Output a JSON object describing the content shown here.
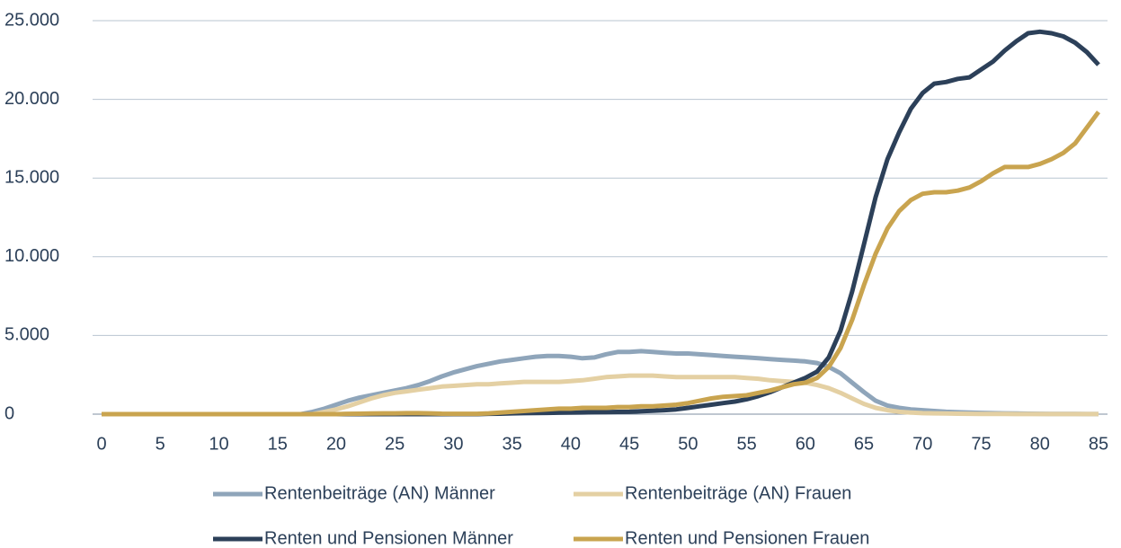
{
  "chart_data": {
    "type": "line",
    "x": [
      0,
      1,
      2,
      3,
      4,
      5,
      6,
      7,
      8,
      9,
      10,
      11,
      12,
      13,
      14,
      15,
      16,
      17,
      18,
      19,
      20,
      21,
      22,
      23,
      24,
      25,
      26,
      27,
      28,
      29,
      30,
      31,
      32,
      33,
      34,
      35,
      36,
      37,
      38,
      39,
      40,
      41,
      42,
      43,
      44,
      45,
      46,
      47,
      48,
      49,
      50,
      51,
      52,
      53,
      54,
      55,
      56,
      57,
      58,
      59,
      60,
      61,
      62,
      63,
      64,
      65,
      66,
      67,
      68,
      69,
      70,
      71,
      72,
      73,
      74,
      75,
      76,
      77,
      78,
      79,
      80,
      81,
      82,
      83,
      84,
      85
    ],
    "xlim": [
      0,
      85
    ],
    "xticks": [
      0,
      5,
      10,
      15,
      20,
      25,
      30,
      35,
      40,
      45,
      50,
      55,
      60,
      65,
      70,
      75,
      80,
      85
    ],
    "ylim": [
      0,
      25000
    ],
    "yticks": [
      0,
      {
        "value": 5000,
        "label": "5.000"
      },
      {
        "value": 10000,
        "label": "10.000"
      },
      {
        "value": 15000,
        "label": "15.000"
      },
      {
        "value": 20000,
        "label": "20.000"
      },
      {
        "value": 25000,
        "label": "25.000"
      }
    ],
    "grid": true,
    "series": [
      {
        "name": "Rentenbeiträge (AN) Männer",
        "color": "#8fa5ba",
        "values": [
          0,
          0,
          0,
          0,
          0,
          0,
          0,
          0,
          0,
          0,
          0,
          0,
          0,
          0,
          0,
          0,
          0,
          0,
          150,
          350,
          600,
          850,
          1050,
          1200,
          1350,
          1500,
          1650,
          1850,
          2100,
          2400,
          2650,
          2850,
          3050,
          3200,
          3350,
          3450,
          3550,
          3650,
          3700,
          3700,
          3650,
          3550,
          3600,
          3800,
          3950,
          3950,
          4000,
          3950,
          3900,
          3850,
          3850,
          3800,
          3750,
          3700,
          3650,
          3600,
          3550,
          3500,
          3450,
          3400,
          3350,
          3250,
          3000,
          2600,
          2000,
          1400,
          850,
          550,
          400,
          300,
          250,
          200,
          150,
          120,
          100,
          80,
          60,
          50,
          40,
          30,
          20,
          15,
          10,
          10,
          5,
          5
        ]
      },
      {
        "name": "Rentenbeiträge (AN) Frauen",
        "color": "#e4d0a3",
        "values": [
          0,
          0,
          0,
          0,
          0,
          0,
          0,
          0,
          0,
          0,
          0,
          0,
          0,
          0,
          0,
          0,
          0,
          0,
          0,
          150,
          300,
          500,
          750,
          1000,
          1200,
          1350,
          1450,
          1550,
          1650,
          1750,
          1800,
          1850,
          1900,
          1900,
          1950,
          2000,
          2050,
          2050,
          2050,
          2050,
          2100,
          2150,
          2250,
          2350,
          2400,
          2450,
          2450,
          2450,
          2400,
          2350,
          2350,
          2350,
          2350,
          2350,
          2350,
          2300,
          2250,
          2150,
          2100,
          2050,
          2000,
          1850,
          1650,
          1350,
          1000,
          650,
          400,
          250,
          150,
          100,
          60,
          50,
          40,
          30,
          20,
          15,
          10,
          10,
          5,
          5,
          5,
          5,
          5,
          5,
          5,
          5
        ]
      },
      {
        "name": "Renten und Pensionen Männer",
        "color": "#2c4059",
        "values": [
          0,
          0,
          0,
          0,
          0,
          0,
          0,
          0,
          0,
          0,
          0,
          0,
          0,
          0,
          0,
          0,
          0,
          0,
          0,
          0,
          0,
          0,
          0,
          0,
          0,
          0,
          0,
          0,
          0,
          0,
          0,
          0,
          0,
          20,
          30,
          50,
          60,
          70,
          80,
          90,
          100,
          110,
          120,
          130,
          140,
          150,
          180,
          210,
          250,
          300,
          400,
          500,
          600,
          700,
          800,
          950,
          1150,
          1400,
          1700,
          2000,
          2300,
          2700,
          3600,
          5300,
          7800,
          10800,
          13800,
          16200,
          17900,
          19400,
          20400,
          21000,
          21100,
          21300,
          21400,
          21900,
          22400,
          23100,
          23700,
          24200,
          24300,
          24200,
          24000,
          23600,
          23000,
          22200
        ]
      },
      {
        "name": "Renten und Pensionen Frauen",
        "color": "#c9a44f",
        "values": [
          0,
          0,
          0,
          0,
          0,
          0,
          0,
          0,
          0,
          0,
          0,
          0,
          0,
          0,
          0,
          0,
          0,
          0,
          0,
          0,
          0,
          20,
          30,
          40,
          50,
          50,
          60,
          60,
          50,
          30,
          20,
          20,
          20,
          50,
          100,
          150,
          200,
          250,
          300,
          350,
          350,
          400,
          400,
          400,
          450,
          450,
          500,
          500,
          550,
          600,
          700,
          850,
          1000,
          1100,
          1150,
          1200,
          1350,
          1500,
          1700,
          1900,
          2000,
          2300,
          3000,
          4200,
          6000,
          8200,
          10200,
          11800,
          12900,
          13600,
          14000,
          14100,
          14100,
          14200,
          14400,
          14800,
          15300,
          15700,
          15700,
          15700,
          15900,
          16200,
          16600,
          17200,
          18200,
          19200
        ]
      }
    ]
  }
}
